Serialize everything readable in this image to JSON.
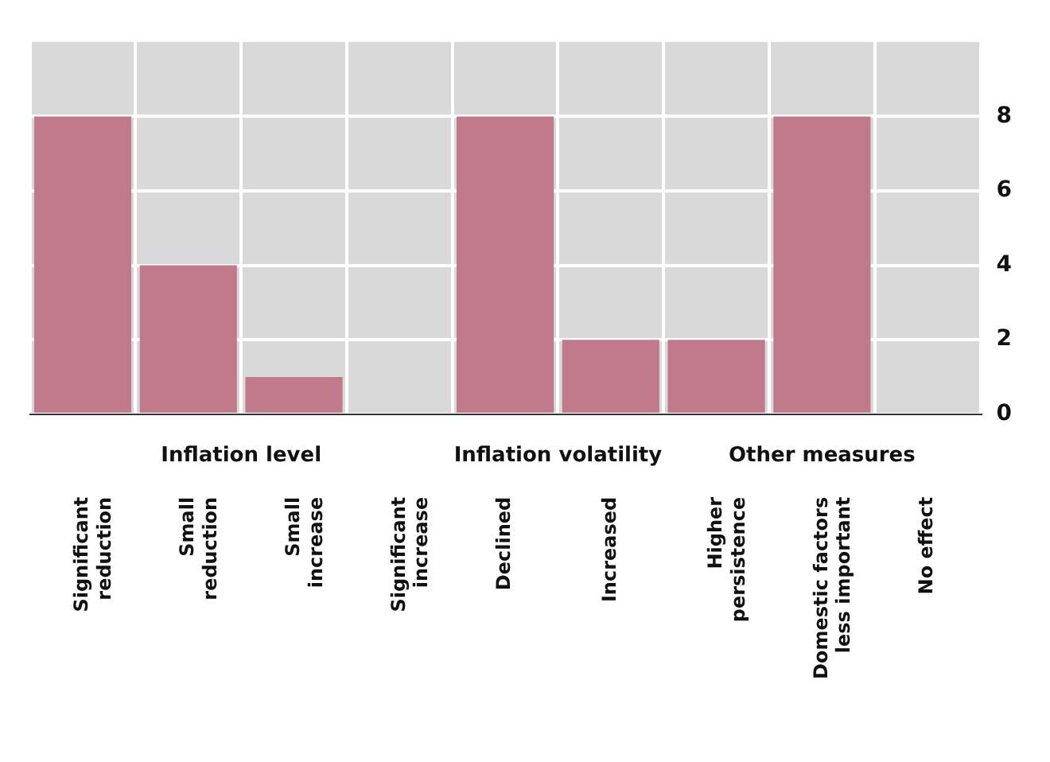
{
  "chart_data": {
    "type": "bar",
    "categories": [
      "Significant reduction",
      "Small reduction",
      "Small increase",
      "Significant increase",
      "Declined",
      "Increased",
      "Higher persistence",
      "Domestic factors less important",
      "No effect"
    ],
    "values": [
      8,
      4,
      1,
      0,
      8,
      2,
      2,
      8,
      0
    ],
    "color": "#c07a8c",
    "ylim": [
      0,
      10
    ],
    "yticks": [
      0,
      2,
      4,
      6,
      8
    ],
    "grid": true,
    "legend": false,
    "annotations": [
      "Inflation level",
      "Inflation volatility",
      "Other measures"
    ]
  }
}
